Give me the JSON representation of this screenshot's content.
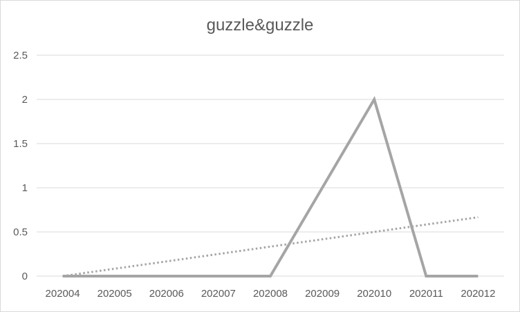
{
  "chart_data": {
    "type": "line",
    "title": "guzzle&guzzle",
    "xlabel": "",
    "ylabel": "",
    "categories": [
      "202004",
      "202005",
      "202006",
      "202007",
      "202008",
      "202009",
      "202010",
      "202011",
      "202012"
    ],
    "y_ticks": [
      "0",
      "0.5",
      "1",
      "1.5",
      "2",
      "2.5"
    ],
    "ylim": [
      0,
      2.5
    ],
    "grid": true,
    "legend": "none",
    "series": [
      {
        "values": [
          0,
          0,
          0,
          0,
          0,
          1,
          2,
          0,
          0
        ],
        "color": "#a5a5a5",
        "style": "solid"
      },
      {
        "values": [
          0,
          0.0833,
          0.1667,
          0.25,
          0.3333,
          0.4167,
          0.5,
          0.5833,
          0.6667
        ],
        "color": "#a5a5a5",
        "style": "dotted",
        "kind": "linear-trendline"
      }
    ]
  }
}
